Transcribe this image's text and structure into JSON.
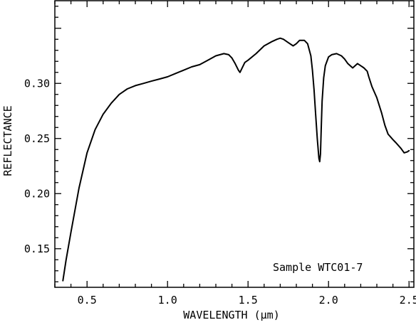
{
  "chart_data": {
    "type": "line",
    "xlabel": "WAVELENGTH (µm)",
    "ylabel": "REFLECTANCE",
    "annotation": "Sample WTC01-7",
    "xlim": [
      0.3,
      2.53
    ],
    "ylim": [
      0.115,
      0.375
    ],
    "x_ticks": [
      0.5,
      1.0,
      1.5,
      2.0,
      2.5
    ],
    "x_tick_labels": [
      "0.5",
      "1.0",
      "1.5",
      "2.0",
      "2.5"
    ],
    "y_ticks": [
      0.15,
      0.2,
      0.25,
      0.3
    ],
    "y_tick_labels": [
      "0.15",
      "0.20",
      "0.25",
      "0.30"
    ],
    "grid": false,
    "series": [
      {
        "x": [
          0.35,
          0.37,
          0.4,
          0.45,
          0.5,
          0.55,
          0.6,
          0.65,
          0.7,
          0.75,
          0.8,
          0.85,
          0.9,
          0.95,
          1.0,
          1.05,
          1.1,
          1.15,
          1.2,
          1.25,
          1.3,
          1.35,
          1.38,
          1.4,
          1.42,
          1.44,
          1.45,
          1.46,
          1.48,
          1.5,
          1.55,
          1.6,
          1.65,
          1.68,
          1.7,
          1.72,
          1.75,
          1.78,
          1.8,
          1.82,
          1.85,
          1.87,
          1.89,
          1.9,
          1.91,
          1.92,
          1.93,
          1.94,
          1.945,
          1.95,
          1.955,
          1.96,
          1.97,
          1.98,
          2.0,
          2.02,
          2.05,
          2.08,
          2.1,
          2.12,
          2.15,
          2.18,
          2.2,
          2.22,
          2.24,
          2.25,
          2.27,
          2.3,
          2.33,
          2.35,
          2.37,
          2.4,
          2.42,
          2.45,
          2.47,
          2.49,
          2.5
        ],
        "y": [
          0.121,
          0.14,
          0.165,
          0.205,
          0.237,
          0.258,
          0.272,
          0.282,
          0.29,
          0.295,
          0.298,
          0.3,
          0.302,
          0.304,
          0.306,
          0.309,
          0.312,
          0.315,
          0.317,
          0.321,
          0.325,
          0.327,
          0.326,
          0.323,
          0.318,
          0.312,
          0.31,
          0.313,
          0.319,
          0.321,
          0.327,
          0.334,
          0.338,
          0.34,
          0.341,
          0.34,
          0.337,
          0.334,
          0.336,
          0.339,
          0.339,
          0.336,
          0.325,
          0.312,
          0.294,
          0.272,
          0.25,
          0.232,
          0.229,
          0.236,
          0.26,
          0.284,
          0.305,
          0.316,
          0.324,
          0.326,
          0.327,
          0.325,
          0.322,
          0.318,
          0.314,
          0.318,
          0.316,
          0.314,
          0.311,
          0.306,
          0.297,
          0.287,
          0.273,
          0.262,
          0.254,
          0.249,
          0.246,
          0.241,
          0.237,
          0.238,
          0.239
        ]
      }
    ]
  }
}
